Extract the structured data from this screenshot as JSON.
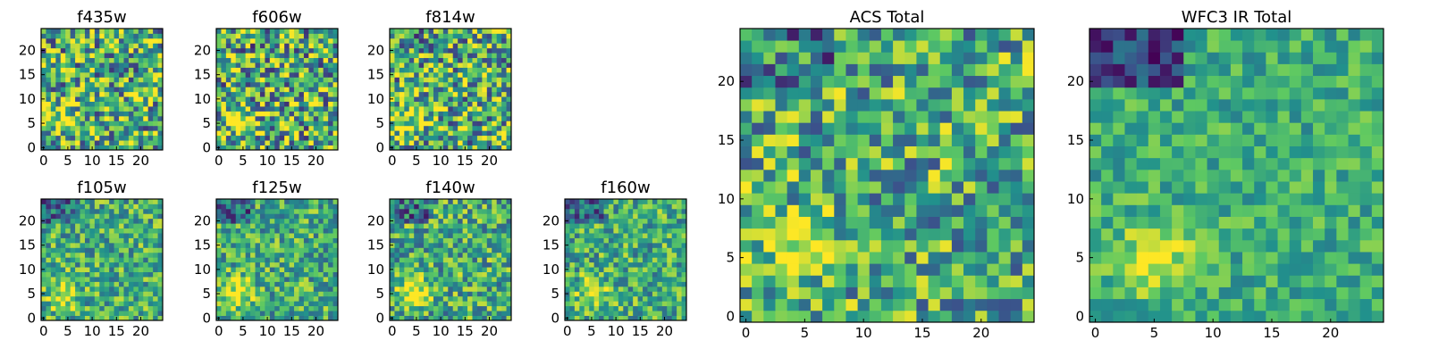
{
  "chart_data": {
    "type": "heatmap",
    "colormap": [
      "#440154",
      "#3b528b",
      "#21918c",
      "#5ec962",
      "#fde725"
    ],
    "grid_size": 25,
    "panels": [
      {
        "title": "f435w",
        "x_ticks": [
          "0",
          "5",
          "10",
          "15",
          "20"
        ],
        "y_ticks": [
          "0",
          "5",
          "10",
          "15",
          "20"
        ],
        "xlim": [
          0,
          24
        ],
        "ylim": [
          0,
          24
        ],
        "blob": [
          4,
          6
        ],
        "noise": 0.9,
        "seed": 11
      },
      {
        "title": "f606w",
        "x_ticks": [
          "0",
          "5",
          "10",
          "15",
          "20"
        ],
        "y_ticks": [
          "0",
          "5",
          "10",
          "15",
          "20"
        ],
        "xlim": [
          0,
          24
        ],
        "ylim": [
          0,
          24
        ],
        "blob": [
          4,
          6
        ],
        "noise": 0.95,
        "seed": 23
      },
      {
        "title": "f814w",
        "x_ticks": [
          "0",
          "5",
          "10",
          "15",
          "20"
        ],
        "y_ticks": [
          "0",
          "5",
          "10",
          "15",
          "20"
        ],
        "xlim": [
          0,
          24
        ],
        "ylim": [
          0,
          24
        ],
        "blob": [
          4,
          6
        ],
        "noise": 0.9,
        "seed": 37
      },
      {
        "title": "f105w",
        "x_ticks": [
          "0",
          "5",
          "10",
          "15",
          "20"
        ],
        "y_ticks": [
          "0",
          "5",
          "10",
          "15",
          "20"
        ],
        "xlim": [
          0,
          24
        ],
        "ylim": [
          0,
          24
        ],
        "blob": [
          4,
          5
        ],
        "noise": 0.6,
        "seed": 41
      },
      {
        "title": "f125w",
        "x_ticks": [
          "0",
          "5",
          "10",
          "15",
          "20"
        ],
        "y_ticks": [
          "0",
          "5",
          "10",
          "15",
          "20"
        ],
        "xlim": [
          0,
          24
        ],
        "ylim": [
          0,
          24
        ],
        "blob": [
          4,
          5
        ],
        "noise": 0.6,
        "seed": 53
      },
      {
        "title": "f140w",
        "x_ticks": [
          "0",
          "5",
          "10",
          "15",
          "20"
        ],
        "y_ticks": [
          "0",
          "5",
          "10",
          "15",
          "20"
        ],
        "xlim": [
          0,
          24
        ],
        "ylim": [
          0,
          24
        ],
        "blob": [
          4,
          5
        ],
        "noise": 0.65,
        "seed": 67
      },
      {
        "title": "f160w",
        "x_ticks": [
          "0",
          "5",
          "10",
          "15",
          "20"
        ],
        "y_ticks": [
          "0",
          "5",
          "10",
          "15",
          "20"
        ],
        "xlim": [
          0,
          24
        ],
        "ylim": [
          0,
          24
        ],
        "blob": [
          5,
          5
        ],
        "noise": 0.6,
        "seed": 79
      },
      {
        "title": "ACS Total",
        "x_ticks": [
          "0",
          "5",
          "10",
          "15",
          "20"
        ],
        "y_ticks": [
          "0",
          "5",
          "10",
          "15",
          "20"
        ],
        "xlim": [
          0,
          24
        ],
        "ylim": [
          0,
          24
        ],
        "blob": [
          4,
          6
        ],
        "noise": 0.75,
        "seed": 83
      },
      {
        "title": "WFC3 IR Total",
        "x_ticks": [
          "0",
          "5",
          "10",
          "15",
          "20"
        ],
        "y_ticks": [
          "0",
          "5",
          "10",
          "15",
          "20"
        ],
        "xlim": [
          0,
          24
        ],
        "ylim": [
          0,
          24
        ],
        "blob": [
          5,
          5
        ],
        "noise": 0.4,
        "seed": 97
      }
    ]
  }
}
